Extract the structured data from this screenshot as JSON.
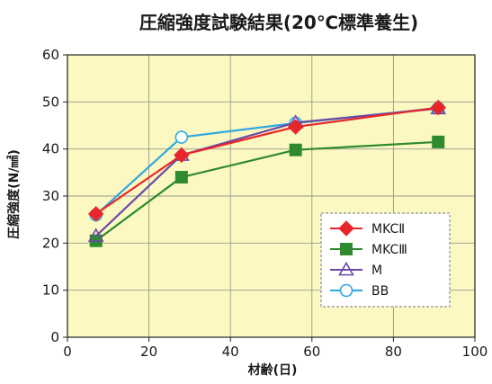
{
  "chart_data": {
    "type": "line",
    "title": "圧縮強度試験結果(20℃標準養生)",
    "xlabel": "材齢(日)",
    "ylabel": "圧縮強度(N/㎟)",
    "xlim": [
      0,
      100
    ],
    "ylim": [
      0,
      60
    ],
    "xticks": [
      0,
      20,
      40,
      60,
      80,
      100
    ],
    "yticks": [
      0,
      10,
      20,
      30,
      40,
      50,
      60
    ],
    "grid": true,
    "legend_position": "lower-right",
    "plot_background": "#fbf8c2",
    "series": [
      {
        "name": "MKCⅡ",
        "marker": "diamond",
        "color": "#e8262a",
        "x": [
          7,
          28,
          56,
          91
        ],
        "y": [
          26.2,
          38.7,
          44.7,
          48.8
        ]
      },
      {
        "name": "MKCⅢ",
        "marker": "square",
        "color": "#2f8a2f",
        "x": [
          7,
          28,
          56,
          91
        ],
        "y": [
          20.5,
          34.0,
          39.8,
          41.5
        ]
      },
      {
        "name": "M",
        "marker": "triangle",
        "color": "#6a4aa6",
        "x": [
          7,
          28,
          56,
          91
        ],
        "y": [
          21.5,
          38.7,
          45.6,
          48.6
        ]
      },
      {
        "name": "BB",
        "marker": "circle",
        "color": "#2fa8e0",
        "x": [
          7,
          28,
          56,
          91
        ],
        "y": [
          26.0,
          42.5,
          45.5,
          48.7
        ]
      }
    ]
  }
}
